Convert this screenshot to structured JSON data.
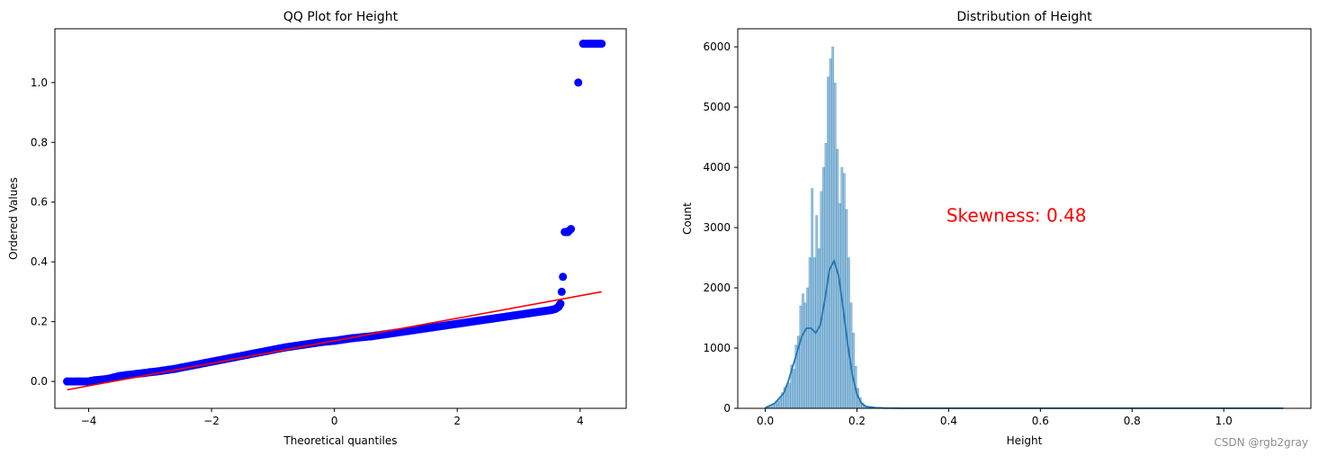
{
  "chart_data": [
    {
      "type": "scatter",
      "title": "QQ Plot for Height",
      "xlabel": "Theoretical quantiles",
      "ylabel": "Ordered Values",
      "xlim": [
        -4.55,
        4.75
      ],
      "ylim": [
        -0.09,
        1.18
      ],
      "xticks": [
        -4,
        -2,
        0,
        2,
        4
      ],
      "xtick_labels": [
        "−4",
        "−2",
        "0",
        "2",
        "4"
      ],
      "yticks": [
        0.0,
        0.2,
        0.4,
        0.6,
        0.8,
        1.0
      ],
      "ytick_labels": [
        "0.0",
        "0.2",
        "0.4",
        "0.6",
        "0.8",
        "1.0"
      ],
      "grid": false,
      "series": [
        {
          "color": "#0000ff",
          "marker": "circle",
          "x": [
            -4.35,
            -4.15,
            -4.0,
            -3.95,
            -3.9,
            -3.8,
            -3.7,
            -3.6,
            -3.5,
            -3.4,
            -3.3,
            -3.2,
            -3.1,
            -3.0,
            -2.9,
            -2.8,
            -2.7,
            -2.6,
            -2.5,
            -2.4,
            -2.3,
            -2.2,
            -2.1,
            -2.0,
            -1.9,
            -1.8,
            -1.7,
            -1.6,
            -1.5,
            -1.4,
            -1.3,
            -1.2,
            -1.1,
            -1.0,
            -0.9,
            -0.8,
            -0.7,
            -0.6,
            -0.5,
            -0.4,
            -0.3,
            -0.2,
            -0.1,
            0.0,
            0.1,
            0.2,
            0.3,
            0.4,
            0.5,
            0.6,
            0.7,
            0.8,
            0.9,
            1.0,
            1.1,
            1.2,
            1.3,
            1.4,
            1.5,
            1.6,
            1.7,
            1.8,
            1.9,
            2.0,
            2.1,
            2.2,
            2.3,
            2.4,
            2.5,
            2.6,
            2.7,
            2.8,
            2.9,
            3.0,
            3.1,
            3.2,
            3.3,
            3.4,
            3.5,
            3.55,
            3.6,
            3.65,
            3.68,
            3.7,
            3.72,
            3.75,
            3.8,
            3.85,
            3.97,
            4.05,
            4.15,
            4.35
          ],
          "y": [
            0.0,
            0.0,
            0.0,
            0.002,
            0.004,
            0.006,
            0.008,
            0.013,
            0.018,
            0.021,
            0.023,
            0.026,
            0.028,
            0.031,
            0.033,
            0.036,
            0.039,
            0.042,
            0.046,
            0.05,
            0.054,
            0.058,
            0.062,
            0.066,
            0.07,
            0.074,
            0.078,
            0.082,
            0.086,
            0.09,
            0.094,
            0.098,
            0.102,
            0.106,
            0.11,
            0.114,
            0.117,
            0.12,
            0.123,
            0.126,
            0.129,
            0.132,
            0.134,
            0.136,
            0.139,
            0.142,
            0.145,
            0.147,
            0.149,
            0.151,
            0.154,
            0.157,
            0.16,
            0.163,
            0.166,
            0.169,
            0.172,
            0.175,
            0.178,
            0.181,
            0.184,
            0.187,
            0.19,
            0.193,
            0.196,
            0.199,
            0.202,
            0.205,
            0.208,
            0.211,
            0.214,
            0.217,
            0.22,
            0.223,
            0.226,
            0.229,
            0.232,
            0.235,
            0.238,
            0.24,
            0.243,
            0.25,
            0.26,
            0.3,
            0.35,
            0.5,
            0.5,
            0.51,
            1.0,
            1.13,
            1.13,
            1.13
          ]
        }
      ],
      "fit_line": {
        "color": "#ff0000",
        "x": [
          -4.35,
          4.35
        ],
        "y": [
          -0.028,
          0.3
        ]
      }
    },
    {
      "type": "bar",
      "subtype": "histogram_with_kde",
      "title": "Distribution of Height",
      "xlabel": "Height",
      "ylabel": "Count",
      "xlim": [
        -0.06,
        1.19
      ],
      "ylim": [
        0,
        6300
      ],
      "xticks": [
        0.0,
        0.2,
        0.4,
        0.6,
        0.8,
        1.0
      ],
      "xtick_labels": [
        "0.0",
        "0.2",
        "0.4",
        "0.6",
        "0.8",
        "1.0"
      ],
      "yticks": [
        0,
        1000,
        2000,
        3000,
        4000,
        5000,
        6000
      ],
      "ytick_labels": [
        "0",
        "1000",
        "2000",
        "3000",
        "4000",
        "5000",
        "6000"
      ],
      "grid": false,
      "bar_color": "#1f77b4",
      "bins": [
        {
          "x": 0.0,
          "count": 10
        },
        {
          "x": 0.005,
          "count": 20
        },
        {
          "x": 0.01,
          "count": 30
        },
        {
          "x": 0.015,
          "count": 50
        },
        {
          "x": 0.02,
          "count": 80
        },
        {
          "x": 0.025,
          "count": 120
        },
        {
          "x": 0.03,
          "count": 180
        },
        {
          "x": 0.035,
          "count": 260
        },
        {
          "x": 0.04,
          "count": 350
        },
        {
          "x": 0.045,
          "count": 380
        },
        {
          "x": 0.05,
          "count": 420
        },
        {
          "x": 0.055,
          "count": 720
        },
        {
          "x": 0.06,
          "count": 650
        },
        {
          "x": 0.065,
          "count": 1050
        },
        {
          "x": 0.07,
          "count": 1200
        },
        {
          "x": 0.075,
          "count": 1700
        },
        {
          "x": 0.08,
          "count": 1900
        },
        {
          "x": 0.085,
          "count": 1750
        },
        {
          "x": 0.09,
          "count": 2000
        },
        {
          "x": 0.095,
          "count": 2500
        },
        {
          "x": 0.1,
          "count": 3650
        },
        {
          "x": 0.105,
          "count": 2500
        },
        {
          "x": 0.11,
          "count": 3200
        },
        {
          "x": 0.115,
          "count": 2650
        },
        {
          "x": 0.12,
          "count": 3600
        },
        {
          "x": 0.125,
          "count": 4000
        },
        {
          "x": 0.13,
          "count": 4400
        },
        {
          "x": 0.135,
          "count": 5500
        },
        {
          "x": 0.14,
          "count": 5800
        },
        {
          "x": 0.145,
          "count": 6000
        },
        {
          "x": 0.15,
          "count": 5400
        },
        {
          "x": 0.155,
          "count": 4300
        },
        {
          "x": 0.16,
          "count": 3400
        },
        {
          "x": 0.165,
          "count": 4000
        },
        {
          "x": 0.17,
          "count": 3900
        },
        {
          "x": 0.175,
          "count": 3300
        },
        {
          "x": 0.18,
          "count": 2500
        },
        {
          "x": 0.185,
          "count": 1750
        },
        {
          "x": 0.19,
          "count": 1250
        },
        {
          "x": 0.195,
          "count": 700
        },
        {
          "x": 0.2,
          "count": 330
        },
        {
          "x": 0.205,
          "count": 180
        },
        {
          "x": 0.21,
          "count": 90
        },
        {
          "x": 0.215,
          "count": 40
        },
        {
          "x": 0.22,
          "count": 20
        },
        {
          "x": 0.225,
          "count": 10
        },
        {
          "x": 0.23,
          "count": 5
        },
        {
          "x": 0.235,
          "count": 3
        },
        {
          "x": 0.24,
          "count": 2
        },
        {
          "x": 0.245,
          "count": 1
        },
        {
          "x": 0.25,
          "count": 1
        },
        {
          "x": 0.26,
          "count": 1
        },
        {
          "x": 0.35,
          "count": 1
        },
        {
          "x": 0.5,
          "count": 1
        },
        {
          "x": 1.0,
          "count": 1
        },
        {
          "x": 1.13,
          "count": 1
        }
      ],
      "kde": {
        "color": "#1f77b4",
        "x": [
          0.0,
          0.02,
          0.04,
          0.05,
          0.06,
          0.07,
          0.08,
          0.09,
          0.1,
          0.11,
          0.12,
          0.13,
          0.14,
          0.15,
          0.16,
          0.17,
          0.18,
          0.19,
          0.2,
          0.21,
          0.22,
          0.24,
          0.26,
          0.3,
          0.4,
          0.6,
          0.8,
          1.0,
          1.13
        ],
        "y": [
          10,
          80,
          250,
          450,
          700,
          950,
          1200,
          1330,
          1330,
          1250,
          1380,
          1800,
          2300,
          2450,
          2200,
          1650,
          1050,
          550,
          230,
          80,
          30,
          10,
          5,
          2,
          1,
          1,
          1,
          1,
          1
        ]
      },
      "annotation": {
        "text": "Skewness: 0.48",
        "x": 0.395,
        "y": 3100,
        "color": "#ff0000"
      }
    }
  ],
  "watermark": "CSDN @rgb2gray"
}
